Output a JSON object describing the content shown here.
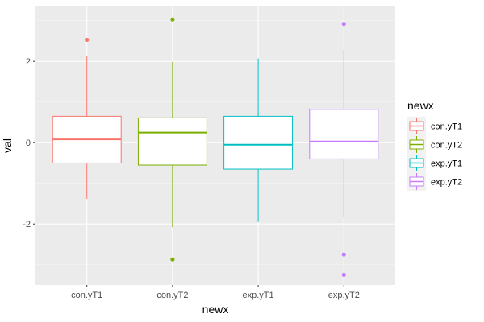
{
  "chart_data": {
    "type": "boxplot",
    "xlabel": "newx",
    "ylabel": "val",
    "ylim": [
      -3.5,
      3.35
    ],
    "yticks": [
      -2,
      0,
      2
    ],
    "ytick_labels": [
      "-2",
      "0",
      "2"
    ],
    "categories": [
      "con.yT1",
      "con.yT2",
      "exp.yT1",
      "exp.yT2"
    ],
    "colors": [
      "#F8766D",
      "#7CAE00",
      "#00BFC4",
      "#C77CFF"
    ],
    "boxes": [
      {
        "name": "con.yT1",
        "q1": -0.5,
        "median": 0.08,
        "q3": 0.65,
        "whisker_low": -1.38,
        "whisker_high": 2.12,
        "outliers": [
          2.53
        ]
      },
      {
        "name": "con.yT2",
        "q1": -0.55,
        "median": 0.25,
        "q3": 0.61,
        "whisker_low": -2.08,
        "whisker_high": 1.99,
        "outliers": [
          3.03,
          -2.87
        ]
      },
      {
        "name": "exp.yT1",
        "q1": -0.65,
        "median": -0.05,
        "q3": 0.65,
        "whisker_low": -1.95,
        "whisker_high": 2.07,
        "outliers": []
      },
      {
        "name": "exp.yT2",
        "q1": -0.4,
        "median": 0.03,
        "q3": 0.82,
        "whisker_low": -1.82,
        "whisker_high": 2.29,
        "outliers": [
          2.92,
          -2.75,
          -3.25
        ]
      }
    ],
    "legend": {
      "title": "newx",
      "position": "right",
      "entries": [
        "con.yT1",
        "con.yT2",
        "exp.yT1",
        "exp.yT2"
      ]
    },
    "grid": true
  }
}
